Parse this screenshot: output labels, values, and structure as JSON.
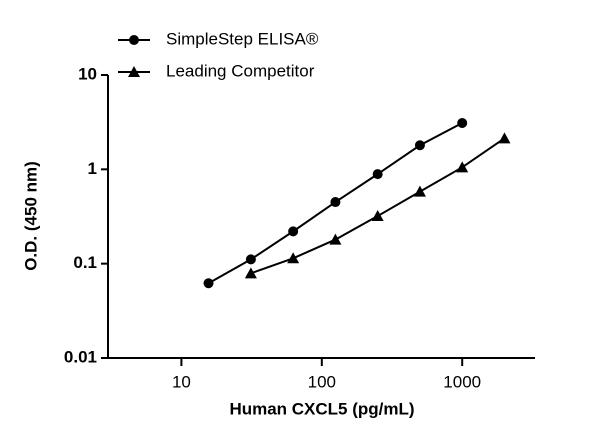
{
  "chart_data": {
    "type": "line",
    "xlabel": "Human CXCL5 (pg/mL)",
    "ylabel": "O.D. (450 nm)",
    "xscale": "log",
    "yscale": "log",
    "xlim": [
      3,
      3300
    ],
    "ylim": [
      0.01,
      10
    ],
    "xticks": [
      10,
      100,
      1000
    ],
    "yticks": [
      0.01,
      0.1,
      1,
      10
    ],
    "legend": "top-left",
    "series": [
      {
        "name": "SimpleStep ELISA®",
        "color": "#000000",
        "marker": "circle",
        "x": [
          15.6,
          31.25,
          62.5,
          125,
          250,
          500,
          1000
        ],
        "values": [
          0.062,
          0.111,
          0.22,
          0.45,
          0.89,
          1.8,
          3.1
        ]
      },
      {
        "name": "Leading Competitor",
        "color": "#000000",
        "marker": "triangle",
        "x": [
          31.25,
          62.5,
          125,
          250,
          500,
          1000,
          2000
        ],
        "values": [
          0.079,
          0.114,
          0.18,
          0.32,
          0.58,
          1.05,
          2.13
        ]
      }
    ]
  }
}
